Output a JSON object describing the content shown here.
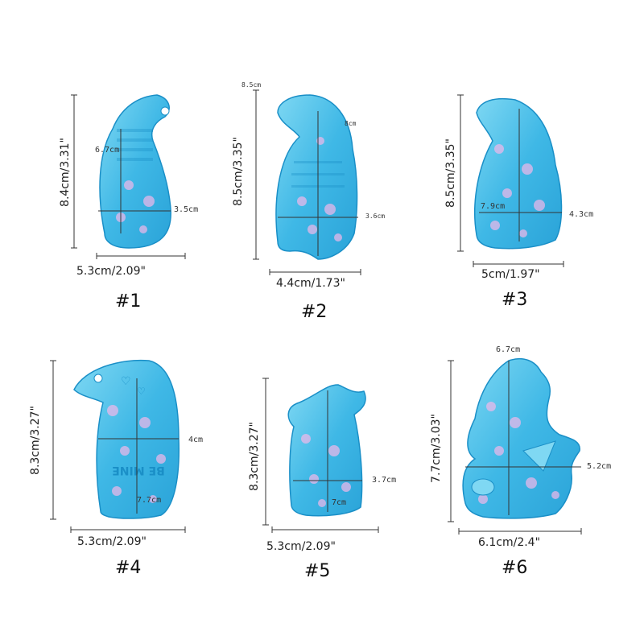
{
  "colors": {
    "mold": "#3fb8e6",
    "mold_dark": "#1a8fc7",
    "mold_light": "#9fe3f7",
    "sparkle": "#f3b8ea",
    "line": "#333333"
  },
  "molds": [
    {
      "number": "#1",
      "width": "5.3cm/2.09\"",
      "height": "8.4cm/3.31\"",
      "inner_h": "6.7cm",
      "inner_w": "3.5cm"
    },
    {
      "number": "#2",
      "width": "4.4cm/1.73\"",
      "height": "8.5cm/3.35\"",
      "inner_h": "8cm",
      "inner_w": "3.6cm",
      "corner": "8.5cm"
    },
    {
      "number": "#3",
      "width": "5cm/1.97\"",
      "height": "8.5cm/3.35\"",
      "inner_h": "7.9cm",
      "inner_w": "4.3cm"
    },
    {
      "number": "#4",
      "width": "5.3cm/2.09\"",
      "height": "8.3cm/3.27\"",
      "inner_h": "7.7cm",
      "inner_w": "4cm",
      "embossed": "BE MINE"
    },
    {
      "number": "#5",
      "width": "5.3cm/2.09\"",
      "height": "8.3cm/3.27\"",
      "inner_h": "7cm",
      "inner_w": "3.7cm"
    },
    {
      "number": "#6",
      "width": "6.1cm/2.4\"",
      "height": "7.7cm/3.03\"",
      "inner_h": "6.7cm",
      "inner_w": "5.2cm"
    }
  ]
}
